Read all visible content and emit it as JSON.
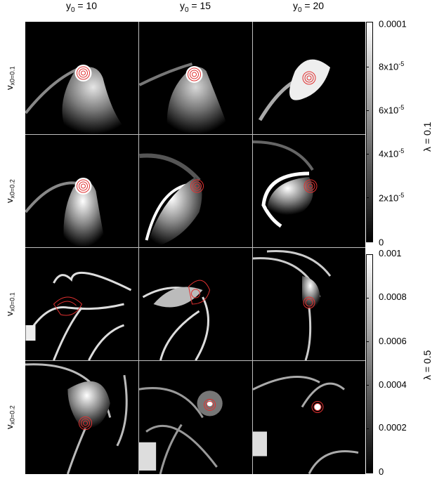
{
  "columns": [
    {
      "base": "y",
      "sub": "0",
      "rest": " = 10"
    },
    {
      "base": "y",
      "sub": "0",
      "rest": " = 15"
    },
    {
      "base": "y",
      "sub": "0",
      "rest": " = 20"
    }
  ],
  "rows": [
    {
      "base": "v",
      "sub": "x0=0.1"
    },
    {
      "base": "v",
      "sub": "x0=0.2"
    },
    {
      "base": "v",
      "sub": "x0=0.1"
    },
    {
      "base": "v",
      "sub": "x0=0.2"
    }
  ],
  "colorbar_top": {
    "label": "λ = 0.1",
    "ticks": [
      {
        "mant": "0.0001",
        "exp": ""
      },
      {
        "mant": "8x10",
        "exp": "-5"
      },
      {
        "mant": "6x10",
        "exp": "-5"
      },
      {
        "mant": "4x10",
        "exp": "-5"
      },
      {
        "mant": "2x10",
        "exp": "-5"
      },
      {
        "mant": "0",
        "exp": ""
      }
    ]
  },
  "colorbar_bottom": {
    "label": "λ = 0.5",
    "ticks": [
      {
        "mant": "0.001",
        "exp": ""
      },
      {
        "mant": "0.0008",
        "exp": ""
      },
      {
        "mant": "0.0006",
        "exp": ""
      },
      {
        "mant": "0.0004",
        "exp": ""
      },
      {
        "mant": "0.0002",
        "exp": ""
      },
      {
        "mant": "0",
        "exp": ""
      }
    ]
  },
  "colors": {
    "background": "#000000",
    "contour": "#e03030",
    "gas": "#ffffff"
  }
}
